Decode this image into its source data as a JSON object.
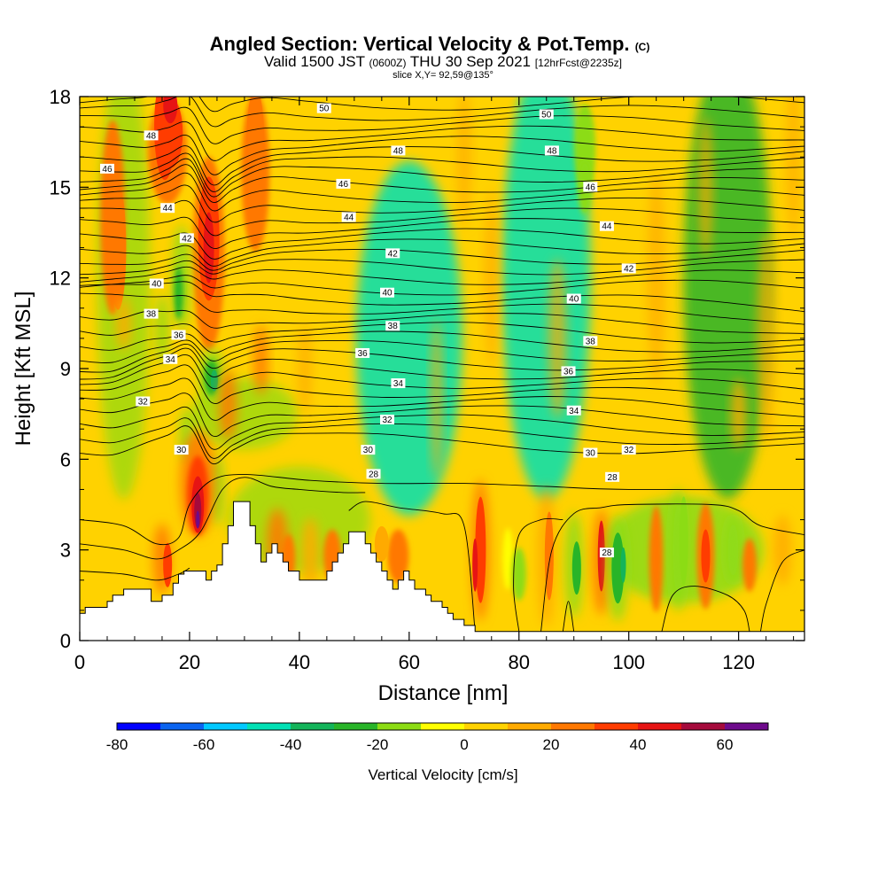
{
  "header": {
    "title_main": "Angled Section: Vertical Velocity & Pot.Temp.",
    "title_tag": "(C)",
    "valid_a": "Valid 1500 JST",
    "valid_b": "(0600Z)",
    "valid_c": "THU 30 Sep 2021",
    "valid_d": "[12hrFcst@2235z]",
    "slice": "slice X,Y= 92,59@135°"
  },
  "chart_data": {
    "type": "heatmap",
    "xlabel": "Distance [nm]",
    "ylabel": "Height [Kft MSL]",
    "xlim": [
      0,
      132
    ],
    "ylim": [
      0,
      18
    ],
    "x_ticks": [
      0,
      20,
      40,
      60,
      80,
      100,
      120
    ],
    "y_ticks": [
      0,
      3,
      6,
      9,
      12,
      15,
      18
    ],
    "x_tick_labels": [
      "0",
      "20",
      "40",
      "60",
      "80",
      "100",
      "120"
    ],
    "y_tick_labels": [
      "0",
      "3",
      "6",
      "9",
      "12",
      "15",
      "18"
    ],
    "colorbar": {
      "label": "Vertical Velocity [cm/s]",
      "levels": [
        -80,
        -70,
        -60,
        -50,
        -40,
        -30,
        -20,
        -10,
        0,
        10,
        20,
        30,
        40,
        50,
        60,
        70
      ],
      "colors": [
        "#0000ff",
        "#0a64f0",
        "#00c8ff",
        "#00e0b4",
        "#14b45a",
        "#28b428",
        "#8cdc14",
        "#ffff00",
        "#ffd200",
        "#ffaa00",
        "#ff7800",
        "#ff3c00",
        "#e61414",
        "#a50a3c",
        "#6e0a8c"
      ],
      "tick_values": [
        -80,
        -60,
        -40,
        -20,
        0,
        20,
        40,
        60
      ],
      "tick_labels": [
        "-80",
        "-60",
        "-40",
        "-20",
        "0",
        "20",
        "40",
        "60"
      ]
    },
    "theta_isentropes": {
      "units": "C",
      "labels": [
        {
          "text": "50",
          "x": 44.5,
          "y": 17.6
        },
        {
          "text": "50",
          "x": 85,
          "y": 17.4
        },
        {
          "text": "48",
          "x": 13,
          "y": 16.7
        },
        {
          "text": "48",
          "x": 58,
          "y": 16.2
        },
        {
          "text": "48",
          "x": 86,
          "y": 16.2
        },
        {
          "text": "46",
          "x": 5,
          "y": 15.6
        },
        {
          "text": "46",
          "x": 48,
          "y": 15.1
        },
        {
          "text": "46",
          "x": 93,
          "y": 15.0
        },
        {
          "text": "44",
          "x": 16,
          "y": 14.3
        },
        {
          "text": "44",
          "x": 49,
          "y": 14.0
        },
        {
          "text": "44",
          "x": 96,
          "y": 13.7
        },
        {
          "text": "42",
          "x": 19.5,
          "y": 13.3
        },
        {
          "text": "42",
          "x": 57,
          "y": 12.8
        },
        {
          "text": "42",
          "x": 100,
          "y": 12.3
        },
        {
          "text": "40",
          "x": 14,
          "y": 11.8
        },
        {
          "text": "40",
          "x": 56,
          "y": 11.5
        },
        {
          "text": "40",
          "x": 90,
          "y": 11.3
        },
        {
          "text": "38",
          "x": 13,
          "y": 10.8
        },
        {
          "text": "38",
          "x": 57,
          "y": 10.4
        },
        {
          "text": "38",
          "x": 93,
          "y": 9.9
        },
        {
          "text": "36",
          "x": 18,
          "y": 10.1
        },
        {
          "text": "36",
          "x": 51.5,
          "y": 9.5
        },
        {
          "text": "36",
          "x": 89,
          "y": 8.9
        },
        {
          "text": "34",
          "x": 16.5,
          "y": 9.3
        },
        {
          "text": "34",
          "x": 58,
          "y": 8.5
        },
        {
          "text": "34",
          "x": 90,
          "y": 7.6
        },
        {
          "text": "32",
          "x": 11.5,
          "y": 7.9
        },
        {
          "text": "32",
          "x": 56,
          "y": 7.3
        },
        {
          "text": "32",
          "x": 100,
          "y": 6.3
        },
        {
          "text": "30",
          "x": 18.5,
          "y": 6.3
        },
        {
          "text": "30",
          "x": 52.5,
          "y": 6.3
        },
        {
          "text": "30",
          "x": 93,
          "y": 6.2
        },
        {
          "text": "28",
          "x": 53.5,
          "y": 5.5
        },
        {
          "text": "28",
          "x": 97,
          "y": 5.4
        },
        {
          "text": "28",
          "x": 96,
          "y": 2.9
        }
      ]
    }
  }
}
